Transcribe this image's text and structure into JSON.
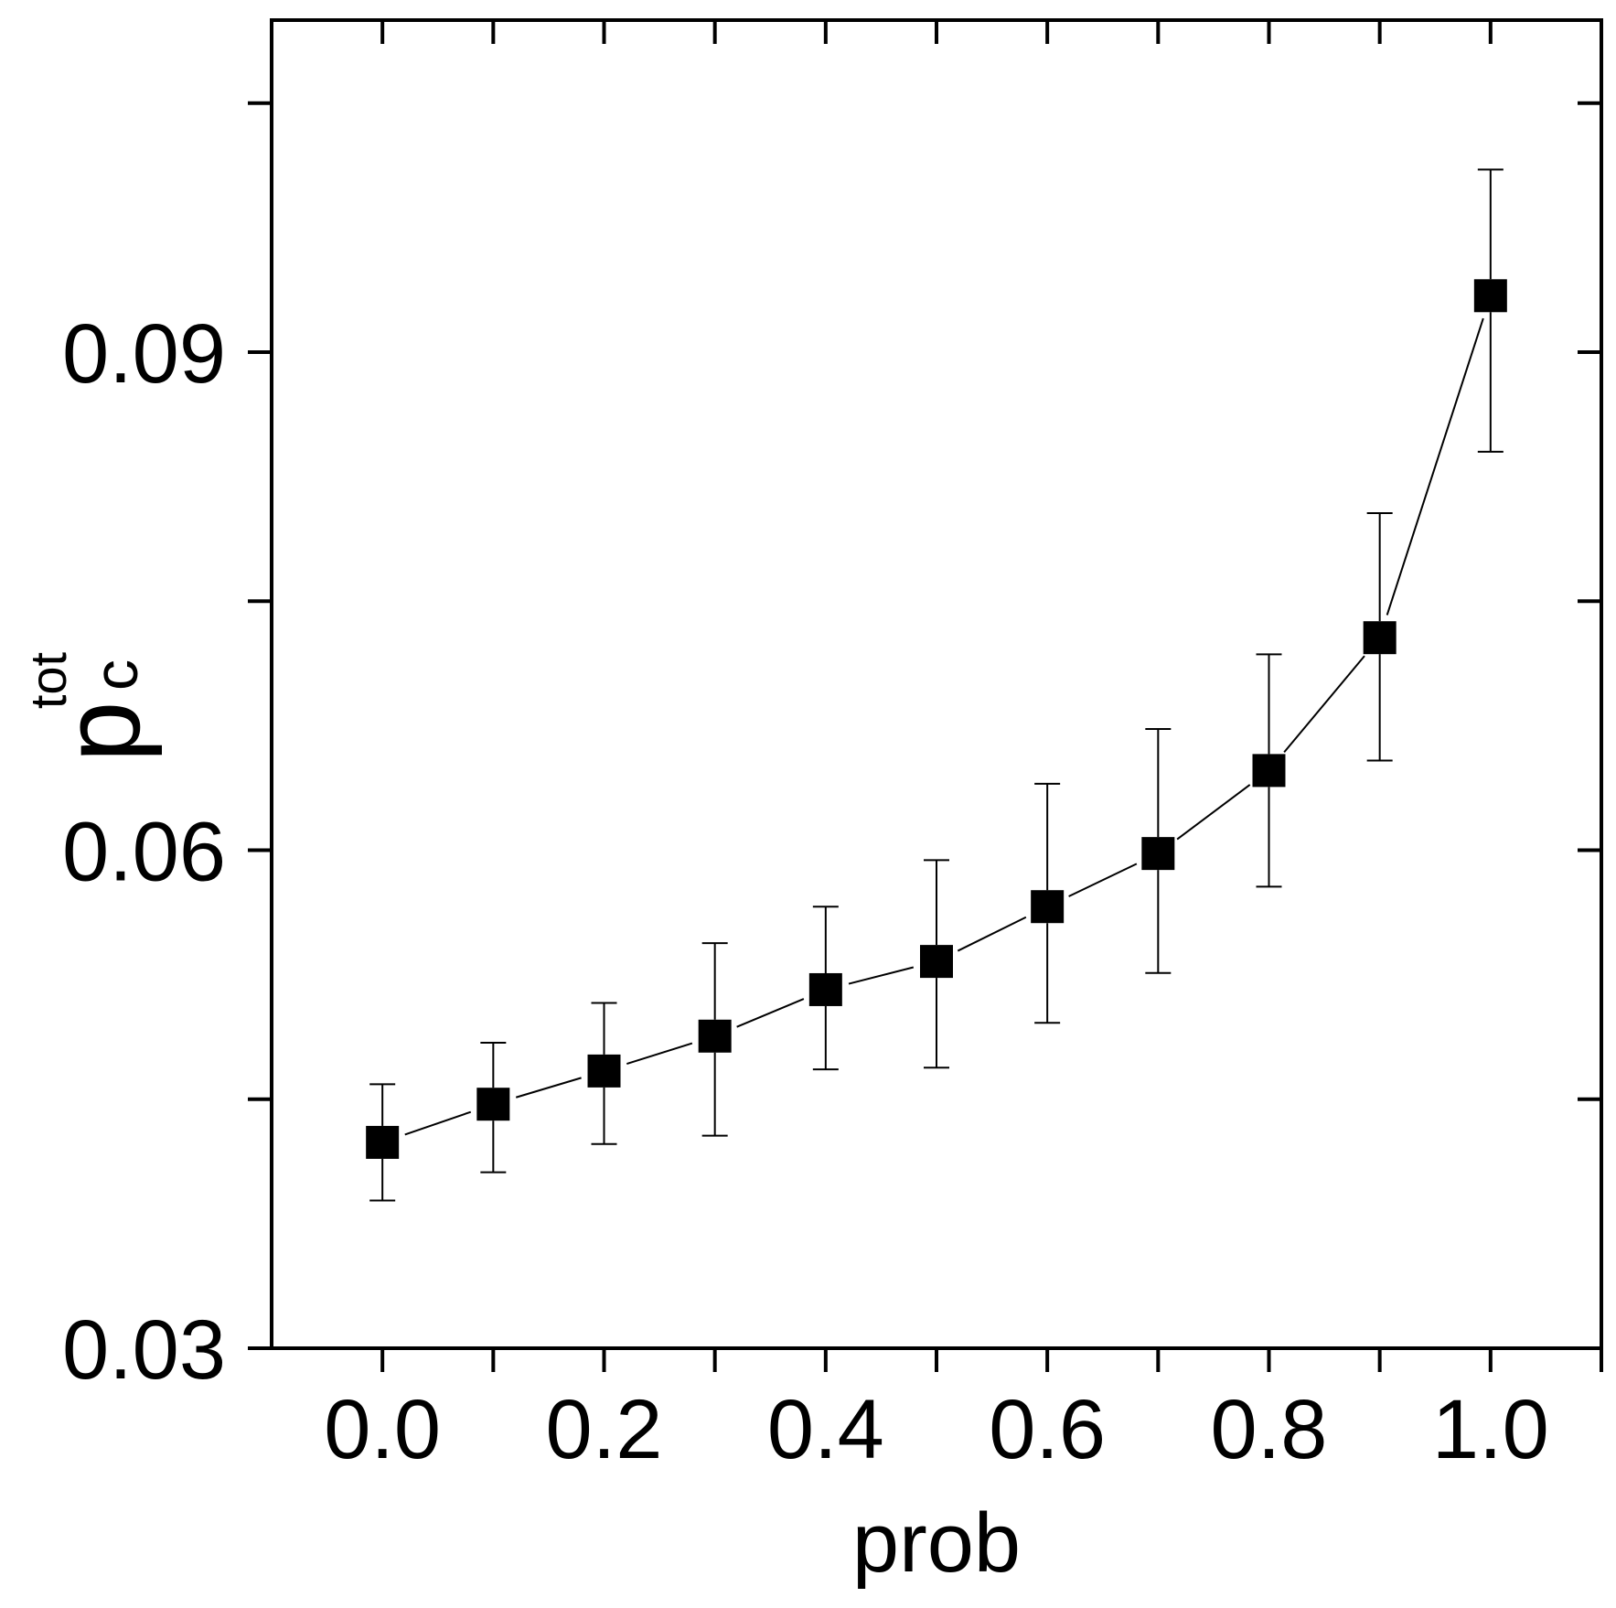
{
  "chart_data": {
    "type": "scatter",
    "xlabel": "prob",
    "ylabel": {
      "base": "p",
      "subscript": "c",
      "superscript": "tot"
    },
    "xlim": [
      -0.1,
      1.1
    ],
    "ylim": [
      0.03,
      0.11
    ],
    "x_ticks": [
      0.0,
      0.1,
      0.2,
      0.3,
      0.4,
      0.5,
      0.6,
      0.7,
      0.8,
      0.9,
      1.0,
      1.1
    ],
    "x_tick_labels": [
      {
        "value": 0.0,
        "label": "0.0"
      },
      {
        "value": 0.2,
        "label": "0.2"
      },
      {
        "value": 0.4,
        "label": "0.4"
      },
      {
        "value": 0.6,
        "label": "0.6"
      },
      {
        "value": 0.8,
        "label": "0.8"
      },
      {
        "value": 1.0,
        "label": "1.0"
      }
    ],
    "y_ticks": [
      0.03,
      0.045,
      0.06,
      0.075,
      0.09,
      0.105
    ],
    "y_tick_labels": [
      {
        "value": 0.03,
        "label": "0.03"
      },
      {
        "value": 0.06,
        "label": "0.06"
      },
      {
        "value": 0.09,
        "label": "0.09"
      }
    ],
    "grid": false,
    "legend": "none",
    "series": [
      {
        "x": [
          0.0,
          0.1,
          0.2,
          0.3,
          0.4,
          0.5,
          0.6,
          0.7,
          0.8,
          0.9,
          1.0
        ],
        "y": [
          0.0424,
          0.0447,
          0.0467,
          0.0488,
          0.0516,
          0.0533,
          0.0566,
          0.0598,
          0.0648,
          0.0728,
          0.0934
        ],
        "err_low": [
          0.0389,
          0.0406,
          0.0423,
          0.0428,
          0.0468,
          0.0469,
          0.0496,
          0.0526,
          0.0578,
          0.0654,
          0.084
        ],
        "err_high": [
          0.0459,
          0.0484,
          0.0508,
          0.0544,
          0.0566,
          0.0594,
          0.064,
          0.0673,
          0.0718,
          0.0803,
          0.101
        ],
        "marker": "square",
        "color": "#000000"
      }
    ]
  }
}
